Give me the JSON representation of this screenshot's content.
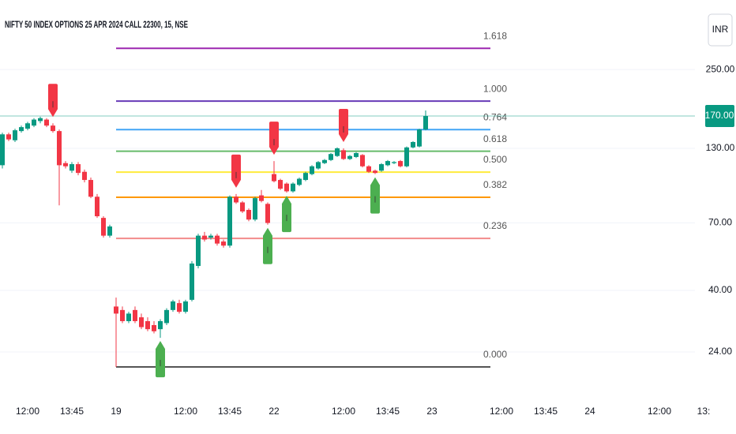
{
  "chart_data": {
    "type": "candlestick",
    "title": "NIFTY 50 INDEX OPTIONS 25 APR 2024 CALL 22300, 15, NSE",
    "currency": "INR",
    "log_scale": true,
    "grid": true,
    "up_color": "#089981",
    "down_color": "#f23645",
    "ylim": [
      16,
      445
    ],
    "yticks": [
      {
        "value": 24,
        "label": "24.00"
      },
      {
        "value": 40,
        "label": "40.00"
      },
      {
        "value": 70,
        "label": "70.00"
      },
      {
        "value": 130,
        "label": "130.00"
      },
      {
        "value": 250,
        "label": "250.00"
      }
    ],
    "last_price": {
      "value": 170,
      "label": "170.00"
    },
    "categories": [
      null,
      null,
      null,
      null,
      "12:00",
      null,
      null,
      null,
      null,
      null,
      null,
      "13:45",
      null,
      null,
      null,
      null,
      null,
      null,
      "19",
      null,
      null,
      null,
      null,
      null,
      null,
      null,
      null,
      null,
      null,
      "12:00",
      null,
      null,
      null,
      null,
      null,
      null,
      "13:45",
      null,
      null,
      null,
      null,
      null,
      null,
      "22",
      null,
      null,
      null,
      null,
      null,
      null,
      null,
      null,
      null,
      null,
      "12:00",
      null,
      null,
      null,
      null,
      null,
      null,
      "13:45",
      null,
      null,
      null,
      null,
      null,
      null,
      "23",
      null,
      null,
      null,
      null,
      null,
      null,
      null,
      null,
      null,
      null,
      "12:00",
      null,
      null,
      null,
      null,
      null,
      null,
      "13:45",
      null,
      null,
      null,
      null,
      null,
      null,
      "24",
      null,
      null,
      null,
      null,
      null,
      null,
      null,
      null,
      null,
      null,
      "12:00",
      null,
      null,
      null,
      null,
      null,
      null,
      "13:"
    ],
    "open": [
      113,
      146,
      139,
      150,
      153,
      157,
      163,
      165,
      157,
      150,
      115,
      108,
      114,
      107,
      100,
      87,
      73,
      63,
      35,
      34,
      31,
      34,
      32,
      31,
      30,
      29,
      30.5,
      34,
      36,
      33.5,
      37,
      49,
      63,
      62,
      63,
      60,
      58,
      87,
      83,
      78,
      72,
      88,
      82,
      105,
      100,
      97,
      91,
      96,
      100,
      105,
      110,
      115,
      118,
      122,
      128,
      119,
      121,
      123,
      112,
      108,
      108,
      113,
      115,
      117,
      112,
      131,
      132,
      152,
      null,
      null,
      null,
      null,
      null,
      null,
      null,
      null,
      null,
      null,
      null,
      null,
      null,
      null,
      null,
      null,
      null,
      null,
      null,
      null,
      null,
      null,
      null,
      null,
      null,
      null,
      null,
      null,
      null,
      null,
      null,
      null,
      null,
      null,
      null,
      null,
      null,
      null,
      null,
      null,
      null,
      null,
      null,
      null
    ],
    "high": [
      148,
      148,
      153,
      157,
      162,
      167,
      169,
      167,
      160,
      152,
      117,
      116,
      116,
      109,
      102,
      89,
      74,
      69,
      37.7,
      35,
      33.5,
      35,
      33,
      32,
      31,
      31.5,
      34.5,
      37,
      37,
      37,
      51,
      64,
      65,
      64,
      64,
      61,
      88,
      89,
      84,
      79,
      87,
      92,
      83,
      117,
      101,
      98,
      98,
      102,
      107,
      113,
      117,
      119,
      125,
      131,
      130,
      123,
      126,
      124,
      113,
      109,
      115,
      118,
      117,
      118,
      132,
      138,
      153,
      178,
      null,
      null,
      null,
      null,
      null,
      null,
      null,
      null,
      null,
      null,
      null,
      null,
      null,
      null,
      null,
      null,
      null,
      null,
      null,
      null,
      null,
      null,
      null,
      null,
      null,
      null,
      null,
      null,
      null,
      null,
      null,
      null,
      null,
      null,
      null,
      null,
      null,
      null,
      null,
      null,
      null,
      null,
      null,
      null
    ],
    "low": [
      110,
      138,
      137,
      148,
      151,
      155,
      160,
      155,
      148,
      81,
      110,
      106,
      104,
      98,
      86,
      73,
      62,
      62,
      21.2,
      30.5,
      30.5,
      30.5,
      29,
      28.5,
      28,
      27,
      30,
      33.5,
      33,
      33,
      36.5,
      48,
      60,
      61,
      58,
      57,
      57,
      82,
      76,
      71,
      71,
      83,
      69,
      98,
      92,
      90,
      90,
      95,
      99,
      104,
      109,
      114,
      117,
      121,
      118,
      118,
      120,
      111,
      106,
      105,
      107,
      112,
      114,
      111,
      111,
      130,
      131,
      151,
      null,
      null,
      null,
      null,
      null,
      null,
      null,
      null,
      null,
      null,
      null,
      null,
      null,
      null,
      null,
      null,
      null,
      null,
      null,
      null,
      null,
      null,
      null,
      null,
      null,
      null,
      null,
      null,
      null,
      null,
      null,
      null,
      null,
      null,
      null,
      null,
      null,
      null,
      null,
      null,
      null,
      null,
      null,
      null
    ],
    "close": [
      146,
      140,
      151,
      155,
      160,
      165,
      167,
      157,
      150,
      113,
      112,
      114,
      106,
      100,
      87,
      74,
      63,
      68,
      33,
      31,
      33,
      31,
      29.5,
      29,
      28.5,
      31,
      34,
      36.5,
      33.5,
      36.5,
      50,
      63,
      61,
      63,
      59,
      58,
      87,
      83,
      77,
      72,
      86,
      84,
      70,
      99,
      93,
      91,
      97,
      101,
      106,
      112,
      116,
      118,
      124,
      130,
      119,
      122,
      125,
      112,
      107,
      106,
      114,
      117,
      116,
      112,
      131,
      137,
      152,
      170,
      null,
      null,
      null,
      null,
      null,
      null,
      null,
      null,
      null,
      null,
      null,
      null,
      null,
      null,
      null,
      null,
      null,
      null,
      null,
      null,
      null,
      null,
      null,
      null,
      null,
      null,
      null,
      null,
      null,
      null,
      null,
      null,
      null,
      null,
      null,
      null,
      null,
      null,
      null,
      null,
      null,
      null,
      null,
      null
    ],
    "sell_signals": [
      8,
      37,
      43,
      54
    ],
    "buy_signals": [
      25,
      42,
      45,
      59
    ],
    "fib_levels": [
      {
        "label": "1.618",
        "price": 298.0,
        "color": "#9c27b0"
      },
      {
        "label": "1.000",
        "price": 192.3,
        "color": "#673ab7"
      },
      {
        "label": "0.764",
        "price": 151.9,
        "color": "#42a5f5"
      },
      {
        "label": "0.618",
        "price": 126.9,
        "color": "#66bb6a"
      },
      {
        "label": "0.500",
        "price": 106.75,
        "color": "#ffeb3b"
      },
      {
        "label": "0.382",
        "price": 86.6,
        "color": "#ff9800"
      },
      {
        "label": "0.236",
        "price": 61.6,
        "color": "#f28b8b"
      },
      {
        "label": "0.000",
        "price": 21.2,
        "color": "#555555"
      }
    ]
  }
}
